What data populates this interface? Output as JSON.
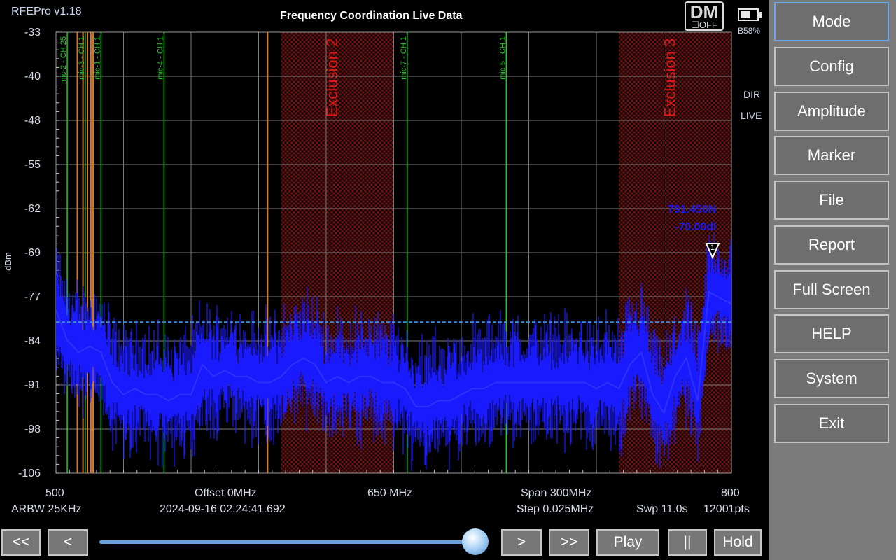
{
  "header": {
    "app_name": "RFEPro v1.18",
    "title": "Frequency Coordination Live Data",
    "dm_label": "DM",
    "dm_state": "OFF",
    "battery_text": "B58%",
    "battery_level": 0.58,
    "dir_label": "DIR",
    "live_label": "LIVE"
  },
  "axes": {
    "y_unit": "dBm",
    "y_ticks": [
      "-33",
      "-40",
      "-48",
      "-55",
      "-62",
      "-69",
      "-77",
      "-84",
      "-91",
      "-98",
      "-106"
    ],
    "x_start": "500",
    "x_center": "650 MHz",
    "x_end": "800"
  },
  "info": {
    "offset": "Offset 0MHz",
    "span": "Span 300MHz",
    "rbw": "ARBW 25KHz",
    "timestamp": "2024-09-16 02:24:41.692",
    "step": "Step 0.025MHz",
    "sweep": "Swp 11.0s",
    "points": "12001pts"
  },
  "marker": {
    "id": "1",
    "freq_text": "791.450N",
    "level_text": "-70.00dl"
  },
  "exclusions": [
    {
      "label": "Exclusion 2",
      "start": 600,
      "end": 650
    },
    {
      "label": "Exclusion 3",
      "start": 750,
      "end": 800
    }
  ],
  "channels": [
    {
      "label": "mic-2 - CH 25",
      "freq": 505,
      "color": "#22cc22"
    },
    {
      "label": "mic-3 - CH 1",
      "freq": 513,
      "color": "#22cc22"
    },
    {
      "label": "mic-1 - CH 1",
      "freq": 520,
      "color": "#22cc22"
    },
    {
      "label": "mic-4 - CH 1",
      "freq": 548,
      "color": "#22cc22"
    },
    {
      "label": "mic-7 - CH 1",
      "freq": 656,
      "color": "#22cc22"
    },
    {
      "label": "mic-5 - CH 1",
      "freq": 700,
      "color": "#22cc22"
    }
  ],
  "intermod_lines": [
    509.5,
    512,
    514,
    515.5,
    516.5,
    594
  ],
  "colors": {
    "trace": "#1a1aff",
    "exclusion": "#6e1111",
    "channel": "#22cc22",
    "intermod": "#e0781a",
    "threshold": "#3b8de0",
    "marker_text": "#1a1aee"
  },
  "chart_data": {
    "type": "line",
    "x_range": [
      500,
      800
    ],
    "ylim": [
      -106,
      -33
    ],
    "grid": true,
    "threshold": -81,
    "series": [
      {
        "x": [
          500,
          505,
          510,
          515,
          520,
          525,
          530,
          535,
          540,
          545,
          550,
          555,
          560,
          565,
          570,
          575,
          580,
          585,
          590,
          595,
          600,
          605,
          610,
          615,
          620,
          625,
          630,
          635,
          640,
          645,
          650,
          655,
          660,
          665,
          670,
          675,
          680,
          685,
          690,
          695,
          700,
          705,
          710,
          715,
          720,
          725,
          730,
          735,
          740,
          745,
          750,
          755,
          760,
          765,
          770,
          775,
          780,
          785,
          790,
          795,
          800
        ],
        "y": [
          -79,
          -84,
          -86,
          -85,
          -86,
          -91,
          -93,
          -92,
          -93,
          -93,
          -94,
          -93,
          -93,
          -88,
          -90,
          -89,
          -90,
          -90,
          -91,
          -91,
          -90,
          -88,
          -87,
          -88,
          -91,
          -90,
          -91,
          -90,
          -90,
          -91,
          -91,
          -92,
          -95,
          -95,
          -94,
          -94,
          -93,
          -92,
          -92,
          -91,
          -91,
          -91,
          -91,
          -91,
          -91,
          -91,
          -91,
          -91,
          -92,
          -91,
          -92,
          -88,
          -86,
          -93,
          -96,
          -90,
          -87,
          -94,
          -76,
          -77,
          -78
        ]
      }
    ]
  },
  "sidebar": {
    "buttons": [
      "Mode",
      "Config",
      "Amplitude",
      "Marker",
      "File",
      "Report",
      "Full Screen",
      "HELP",
      "System",
      "Exit"
    ]
  },
  "playback": {
    "rewind_fast": "<<",
    "rewind": "<",
    "forward": ">",
    "forward_fast": ">>",
    "play": "Play",
    "pause": "||",
    "hold": "Hold",
    "position": 0.98
  }
}
